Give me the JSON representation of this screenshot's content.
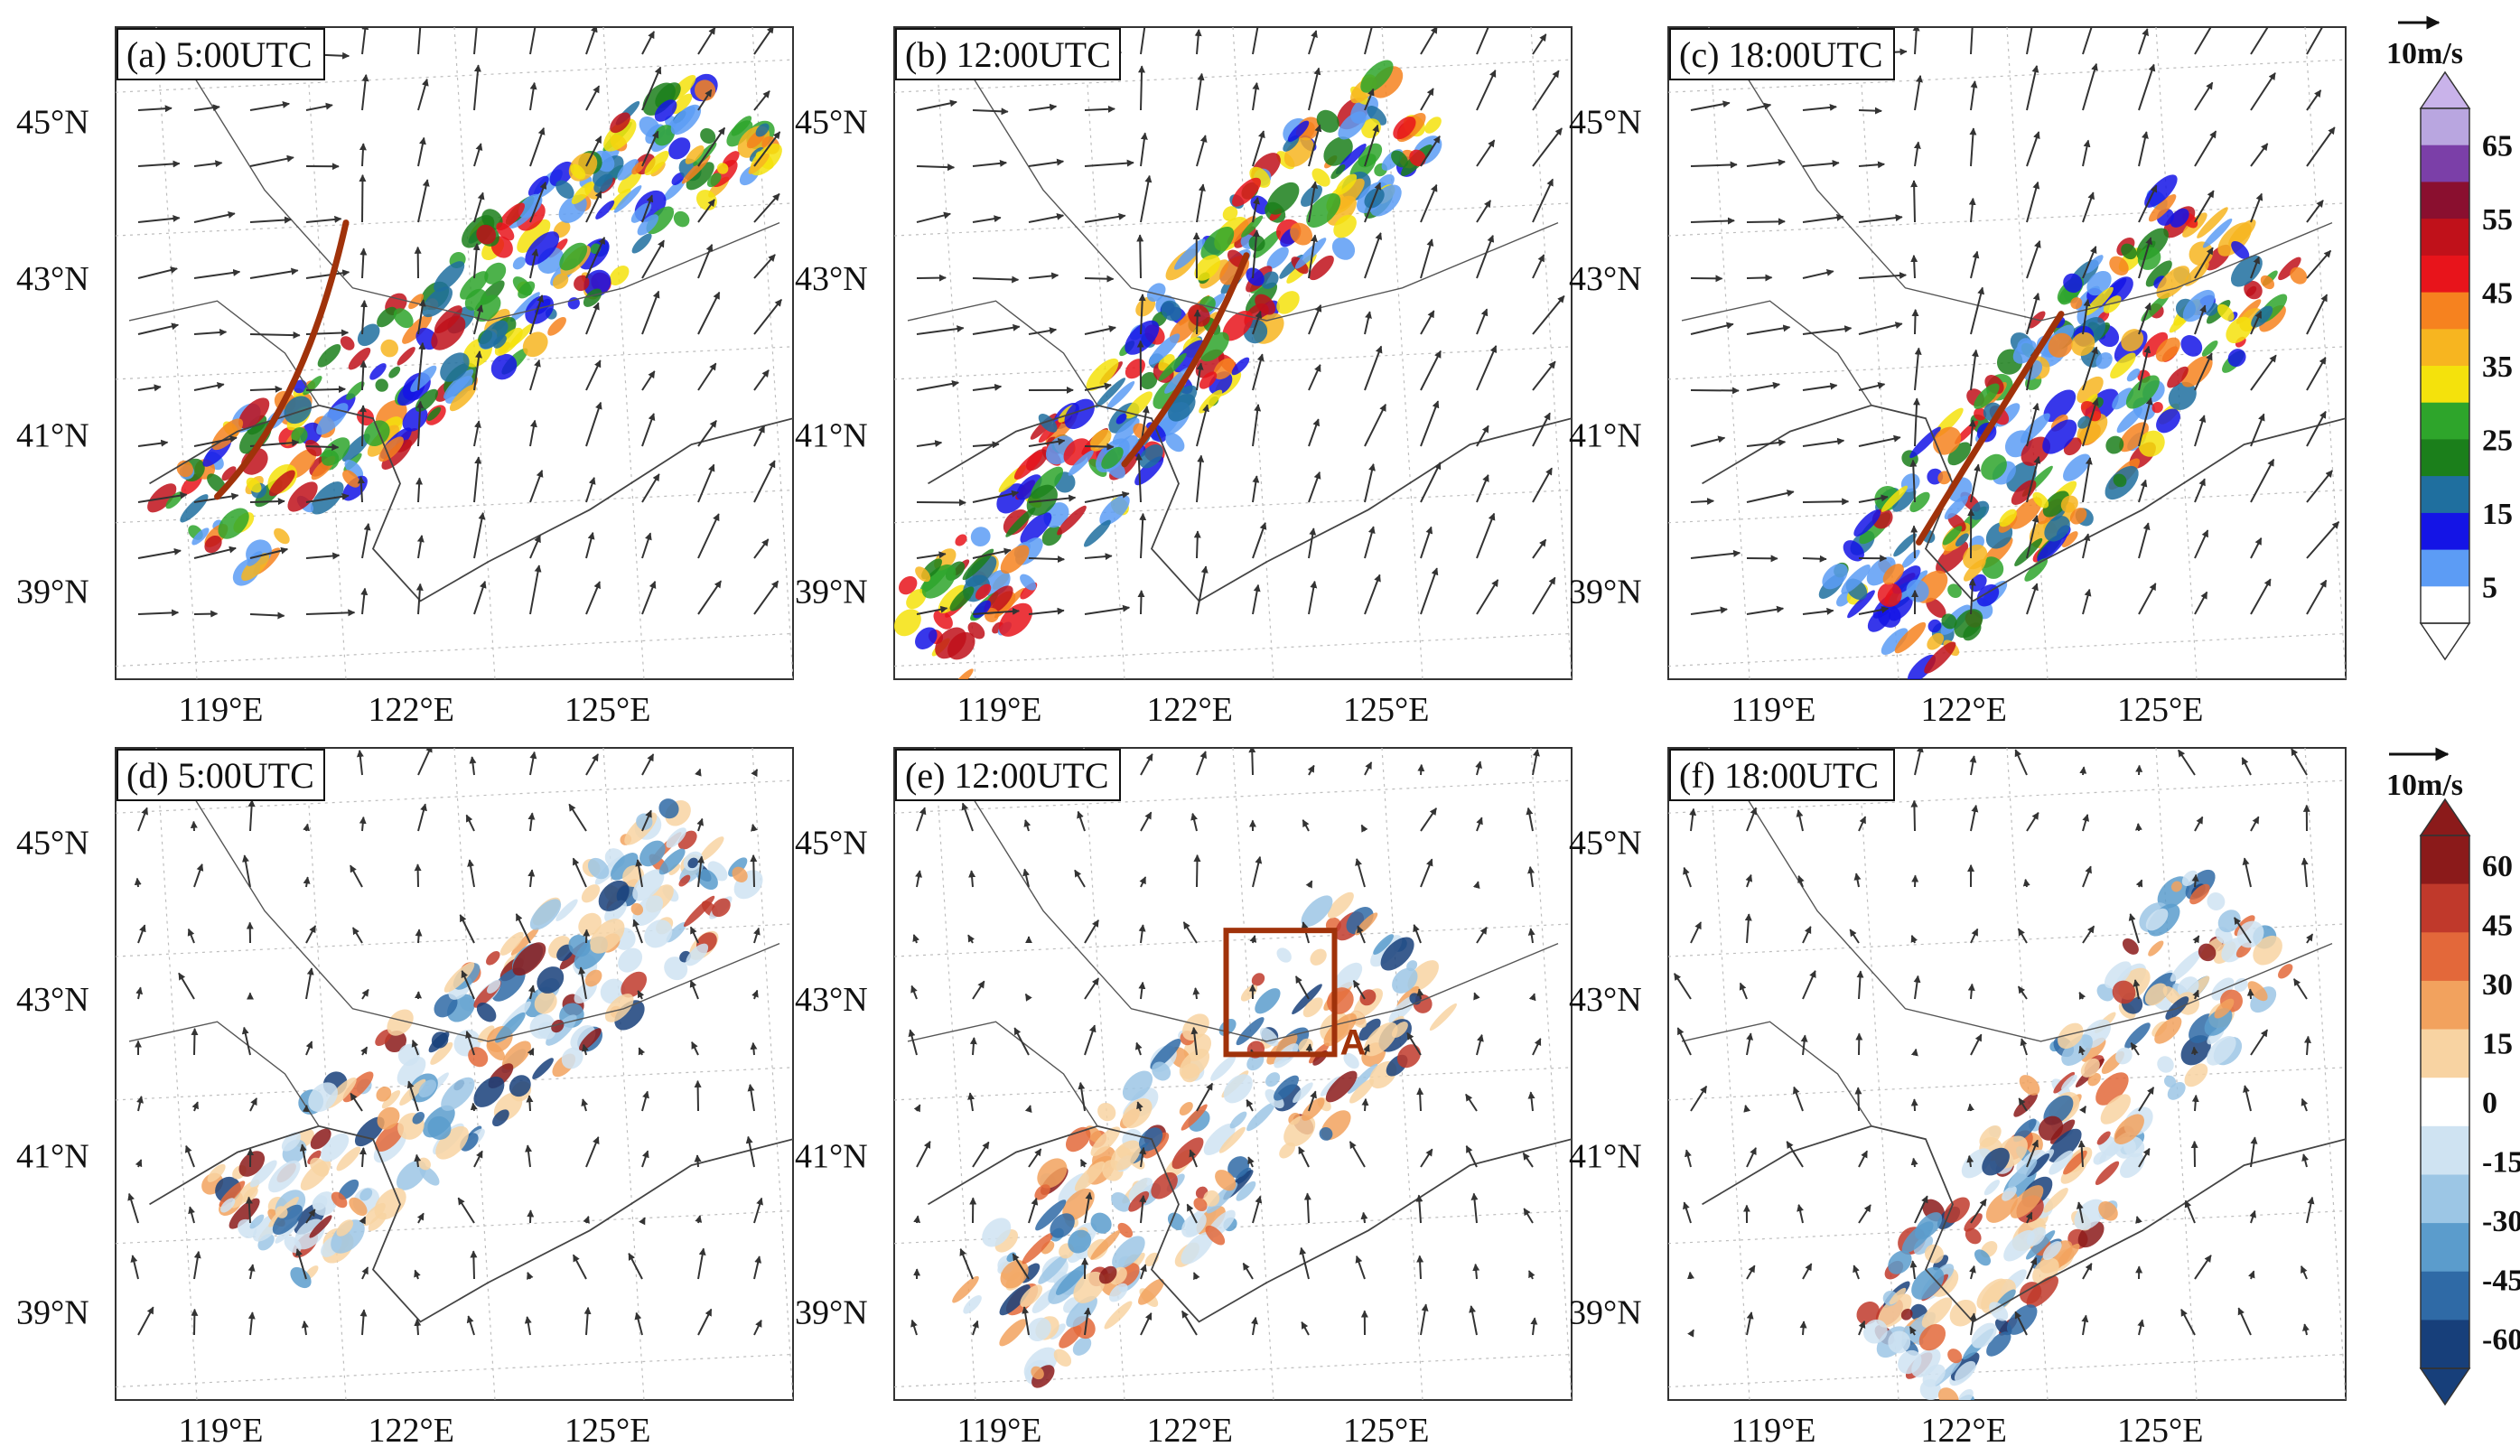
{
  "chart_data": {
    "type": "heatmap",
    "layout": "2 rows x 3 columns of map panels",
    "panels": [
      {
        "id": "a",
        "label": "(a) 5:00UTC",
        "row": "top",
        "field": "reflectivity",
        "front_line": true
      },
      {
        "id": "b",
        "label": "(b) 12:00UTC",
        "row": "top",
        "field": "reflectivity",
        "front_line": true
      },
      {
        "id": "c",
        "label": "(c) 18:00UTC",
        "row": "top",
        "field": "reflectivity",
        "front_line": true
      },
      {
        "id": "d",
        "label": "(d) 5:00UTC",
        "row": "bottom",
        "field": "anomaly",
        "front_line": false
      },
      {
        "id": "e",
        "label": "(e) 12:00UTC",
        "row": "bottom",
        "field": "anomaly",
        "front_line": false,
        "box_label": "A"
      },
      {
        "id": "f",
        "label": "(f) 18:00UTC",
        "row": "bottom",
        "field": "anomaly",
        "front_line": false
      }
    ],
    "x_ticks": [
      "119°E",
      "122°E",
      "125°E"
    ],
    "y_ticks": [
      "45°N",
      "43°N",
      "41°N",
      "39°N"
    ],
    "reference_vector_label": "10m/s",
    "colorbar_top": {
      "ticks": [
        "65",
        "55",
        "45",
        "35",
        "25",
        "15",
        "5"
      ],
      "colors": [
        "#b9a6e0",
        "#7b3fa8",
        "#8a0f2f",
        "#c0111a",
        "#e8141b",
        "#f6821f",
        "#f7b520",
        "#f4e20c",
        "#2ea52b",
        "#1b7f1b",
        "#1f6f9f",
        "#1414e6",
        "#5c9cf5",
        "#ffffff"
      ]
    },
    "colorbar_bottom": {
      "ticks": [
        "60",
        "45",
        "30",
        "15",
        "0",
        "-15",
        "-30",
        "-45",
        "-60"
      ],
      "colors": [
        "#8b1a1a",
        "#c0392b",
        "#e3683a",
        "#f2a25e",
        "#f8d3a2",
        "#ffffff",
        "#cfe3f2",
        "#9cc6e5",
        "#5b9ccc",
        "#2f6aa6",
        "#173f7a"
      ]
    }
  }
}
